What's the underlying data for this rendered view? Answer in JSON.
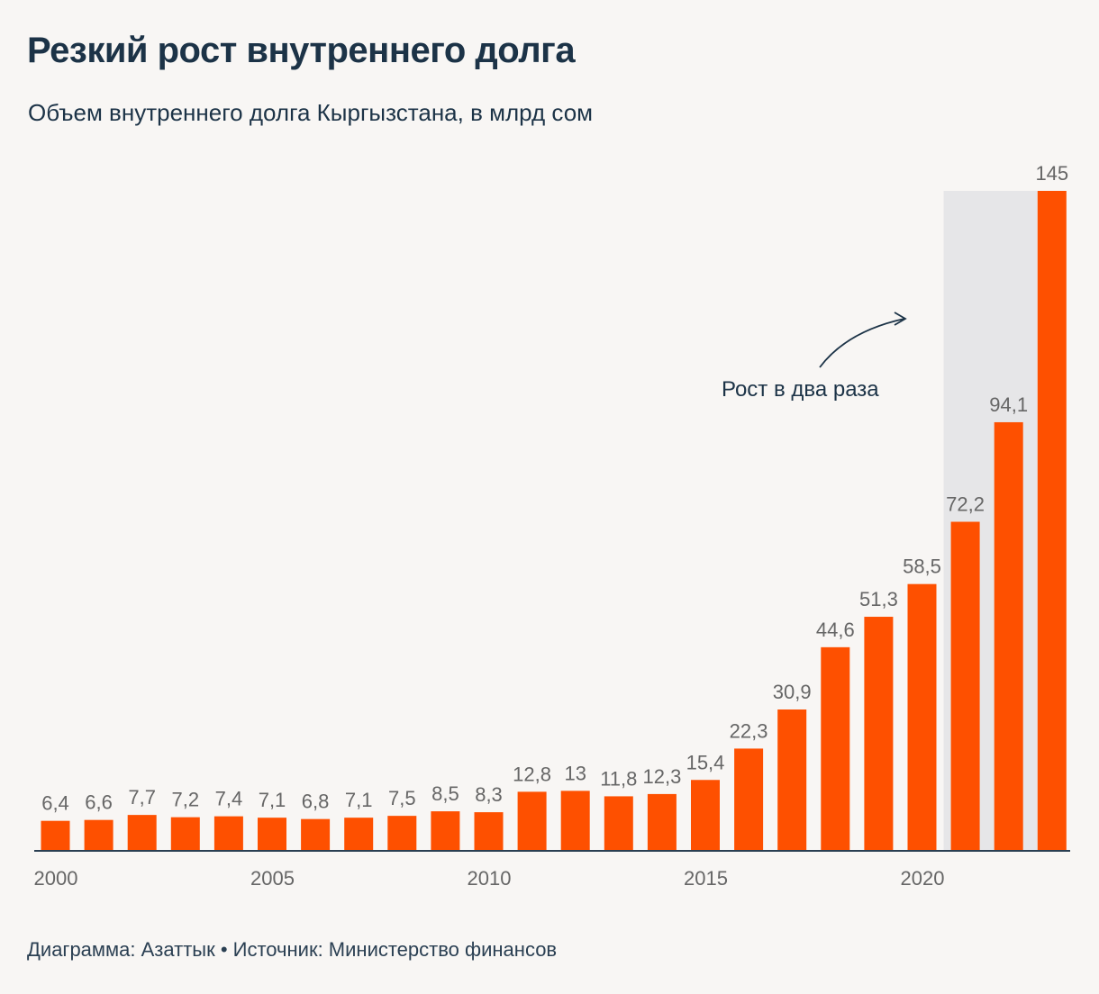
{
  "title": "Резкий рост внутреннего долга",
  "subtitle": "Объем внутреннего долга Кыргызстана, в млрд сом",
  "footer": "Диаграмма: Азаттык • Источник: Министерство финансов",
  "colors": {
    "bar": "#fe5000",
    "highlight": "#e6e6e8",
    "text": "#1c3347",
    "label": "#666666",
    "axis": "#2a3f52"
  },
  "chart_data": {
    "type": "bar",
    "title": "Резкий рост внутреннего долга",
    "subtitle": "Объем внутреннего долга Кыргызстана, в млрд сом",
    "categories": [
      2000,
      2001,
      2002,
      2003,
      2004,
      2005,
      2006,
      2007,
      2008,
      2009,
      2010,
      2011,
      2012,
      2013,
      2014,
      2015,
      2016,
      2017,
      2018,
      2019,
      2020,
      2021,
      2022,
      2023
    ],
    "values": [
      6.4,
      6.6,
      7.7,
      7.2,
      7.4,
      7.1,
      6.8,
      7.1,
      7.5,
      8.5,
      8.3,
      12.8,
      13,
      11.8,
      12.3,
      15.4,
      22.3,
      30.9,
      44.6,
      51.3,
      58.5,
      72.2,
      94.1,
      145
    ],
    "value_labels": [
      "6,4",
      "6,6",
      "7,7",
      "7,2",
      "7,4",
      "7,1",
      "6,8",
      "7,1",
      "7,5",
      "8,5",
      "8,3",
      "12,8",
      "13",
      "11,8",
      "12,3",
      "15,4",
      "22,3",
      "30,9",
      "44,6",
      "51,3",
      "58,5",
      "72,2",
      "94,1",
      "145"
    ],
    "x_tick_labels": [
      "2000",
      "2005",
      "2010",
      "2015",
      "2020"
    ],
    "xlabel": "",
    "ylabel": "",
    "ylim": [
      0,
      145
    ],
    "grid": false,
    "legend": "none",
    "highlight_range": [
      2021,
      2023
    ],
    "annotation": "Рост в два раза"
  }
}
